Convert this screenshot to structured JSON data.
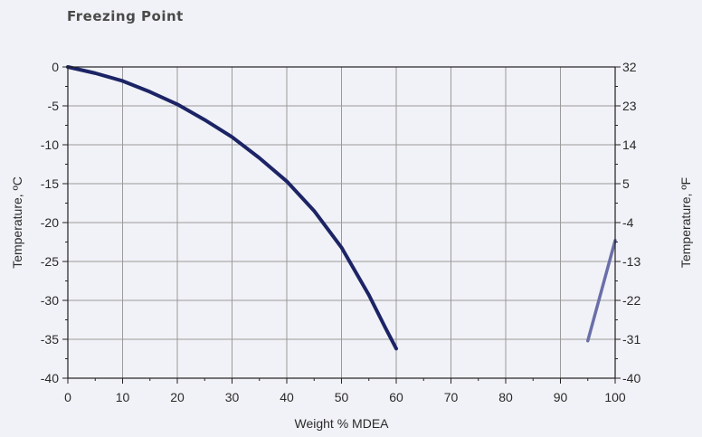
{
  "chart_data": {
    "type": "line",
    "title": "Freezing Point",
    "xlabel": "Weight % MDEA",
    "ylabel": "Temperature, ºC",
    "ylabel_right": "Temperature, ºF",
    "xlim": [
      0,
      100
    ],
    "ylim": [
      -40,
      0
    ],
    "x_ticks": [
      0,
      10,
      20,
      30,
      40,
      50,
      60,
      70,
      80,
      90,
      100
    ],
    "y_ticks": [
      0,
      -5,
      -10,
      -15,
      -20,
      -25,
      -30,
      -35,
      -40
    ],
    "y_ticks_right": [
      "32",
      "23",
      "14",
      "5",
      "-4",
      "-13",
      "-22",
      "-31",
      "-40"
    ],
    "y_ticks_right_values_c": [
      0,
      -5,
      -10,
      -15,
      -20,
      -25,
      -30,
      -35,
      -40
    ],
    "grid": true,
    "series": [
      {
        "color": "#1c2466",
        "x": [
          0,
          5,
          10,
          15,
          20,
          25,
          30,
          35,
          40,
          45,
          50,
          55,
          58,
          60
        ],
        "y": [
          0,
          -0.8,
          -1.8,
          -3.2,
          -4.8,
          -6.8,
          -9.0,
          -11.7,
          -14.7,
          -18.5,
          -23.2,
          -29.3,
          -33.5,
          -36.2
        ]
      },
      {
        "color": "#6a6fa8",
        "x": [
          95,
          100
        ],
        "y": [
          -35.2,
          -22.3
        ]
      }
    ]
  }
}
